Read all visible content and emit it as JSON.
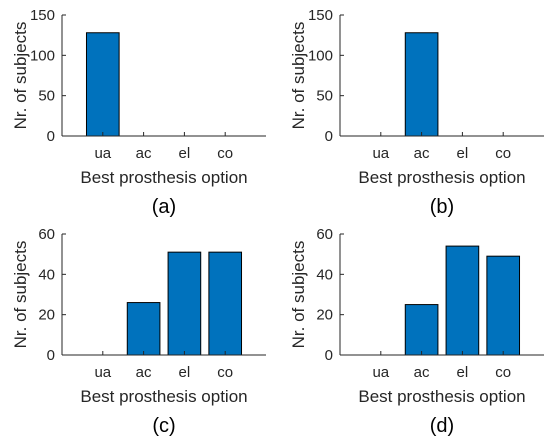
{
  "chart_data": [
    {
      "type": "bar",
      "panel_label": "(a)",
      "categories": [
        "ua",
        "ac",
        "el",
        "co"
      ],
      "values": [
        128,
        0,
        0,
        0
      ],
      "xlabel": "Best prosthesis option",
      "ylabel": "Nr. of subjects",
      "ylim": [
        0,
        150
      ],
      "yticks": [
        "0",
        "50",
        "100",
        "150"
      ],
      "grid": false,
      "bar_color": "#0072BD"
    },
    {
      "type": "bar",
      "panel_label": "(b)",
      "categories": [
        "ua",
        "ac",
        "el",
        "co"
      ],
      "values": [
        0,
        128,
        0,
        0
      ],
      "xlabel": "Best prosthesis option",
      "ylabel": "Nr. of subjects",
      "ylim": [
        0,
        150
      ],
      "yticks": [
        "0",
        "50",
        "100",
        "150"
      ],
      "grid": false,
      "bar_color": "#0072BD"
    },
    {
      "type": "bar",
      "panel_label": "(c)",
      "categories": [
        "ua",
        "ac",
        "el",
        "co"
      ],
      "values": [
        0,
        26,
        51,
        51
      ],
      "xlabel": "Best prosthesis option",
      "ylabel": "Nr. of subjects",
      "ylim": [
        0,
        60
      ],
      "yticks": [
        "0",
        "20",
        "40",
        "60"
      ],
      "grid": false,
      "bar_color": "#0072BD"
    },
    {
      "type": "bar",
      "panel_label": "(d)",
      "categories": [
        "ua",
        "ac",
        "el",
        "co"
      ],
      "values": [
        0,
        25,
        54,
        49
      ],
      "xlabel": "Best prosthesis option",
      "ylabel": "Nr. of subjects",
      "ylim": [
        0,
        60
      ],
      "yticks": [
        "0",
        "20",
        "40",
        "60"
      ],
      "grid": false,
      "bar_color": "#0072BD"
    }
  ]
}
